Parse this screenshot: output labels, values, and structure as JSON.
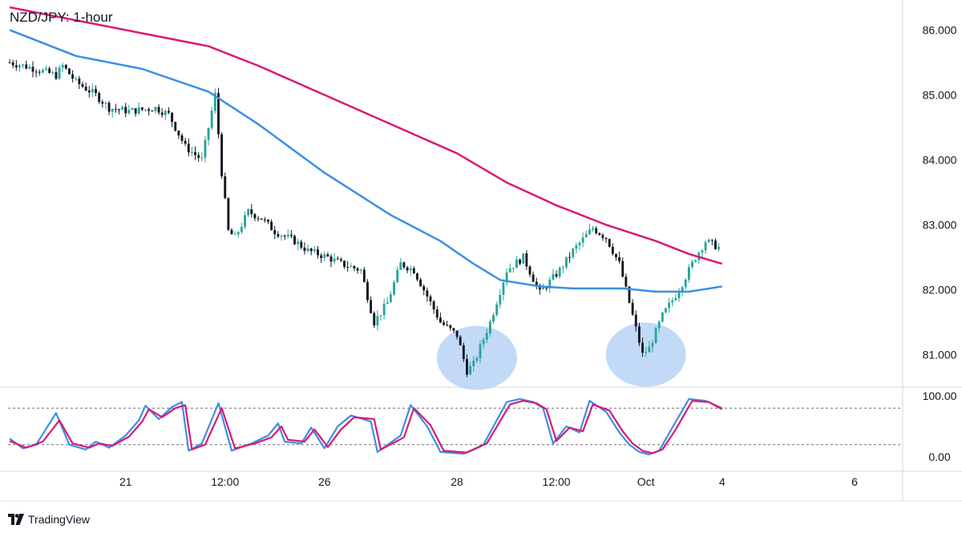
{
  "title": "NZD/JPY: 1-hour",
  "brand": {
    "name": "TradingView",
    "logo_icon": "tradingview-logo-icon"
  },
  "colors": {
    "up_candle": "#26a69a",
    "down_candle": "#131722",
    "ma_long": "#d81b72",
    "ma_short": "#3d8ee6",
    "stoch_k": "#3d8ee6",
    "stoch_d": "#d81b72",
    "highlight": "#b7d4f7",
    "grid": "#e0e3eb",
    "axis_text": "#131722"
  },
  "chart_data": [
    {
      "type": "candlestick",
      "title": "NZD/JPY: 1-hour",
      "ylim": [
        80.5,
        86.4
      ],
      "y_ticks": [
        "86.000",
        "85.000",
        "84.000",
        "83.000",
        "82.000",
        "81.000"
      ],
      "y_tick_values": [
        86,
        85,
        84,
        83,
        82,
        81
      ],
      "x_ticks": [
        "21",
        "12:00",
        "26",
        "28",
        "12:00",
        "Oct",
        "4",
        "6"
      ],
      "x_tick_index": [
        35,
        65,
        95,
        135,
        165,
        192,
        215,
        255
      ],
      "bar_count": 270,
      "price_path": [
        [
          0,
          85.5
        ],
        [
          8,
          85.4
        ],
        [
          14,
          85.3
        ],
        [
          16,
          85.45
        ],
        [
          20,
          85.2
        ],
        [
          26,
          85.0
        ],
        [
          30,
          84.8
        ],
        [
          36,
          84.75
        ],
        [
          44,
          84.8
        ],
        [
          48,
          84.7
        ],
        [
          53,
          84.2
        ],
        [
          58,
          84.0
        ],
        [
          62,
          85.0
        ],
        [
          64,
          83.8
        ],
        [
          66,
          82.9
        ],
        [
          68,
          82.8
        ],
        [
          72,
          83.2
        ],
        [
          76,
          83.1
        ],
        [
          80,
          82.9
        ],
        [
          86,
          82.75
        ],
        [
          90,
          82.6
        ],
        [
          96,
          82.5
        ],
        [
          100,
          82.4
        ],
        [
          106,
          82.3
        ],
        [
          110,
          81.5
        ],
        [
          114,
          81.8
        ],
        [
          118,
          82.4
        ],
        [
          122,
          82.3
        ],
        [
          126,
          81.9
        ],
        [
          130,
          81.5
        ],
        [
          135,
          81.3
        ],
        [
          138,
          80.75
        ],
        [
          140,
          80.85
        ],
        [
          145,
          81.5
        ],
        [
          150,
          82.3
        ],
        [
          155,
          82.5
        ],
        [
          160,
          81.95
        ],
        [
          166,
          82.3
        ],
        [
          170,
          82.6
        ],
        [
          176,
          82.95
        ],
        [
          180,
          82.8
        ],
        [
          184,
          82.4
        ],
        [
          188,
          81.6
        ],
        [
          191,
          81.0
        ],
        [
          193,
          81.1
        ],
        [
          197,
          81.6
        ],
        [
          202,
          82.0
        ],
        [
          207,
          82.5
        ],
        [
          210,
          82.75
        ],
        [
          214,
          82.65
        ]
      ],
      "series": [
        {
          "name": "",
          "kind": "moving-average",
          "points": [
            [
              0,
              86.35
            ],
            [
              20,
              86.15
            ],
            [
              40,
              85.95
            ],
            [
              60,
              85.75
            ],
            [
              75,
              85.45
            ],
            [
              95,
              85.0
            ],
            [
              115,
              84.55
            ],
            [
              135,
              84.1
            ],
            [
              150,
              83.65
            ],
            [
              165,
              83.3
            ],
            [
              180,
              83.0
            ],
            [
              195,
              82.75
            ],
            [
              205,
              82.55
            ],
            [
              215,
              82.4
            ]
          ]
        },
        {
          "name": "",
          "kind": "moving-average",
          "points": [
            [
              0,
              86.0
            ],
            [
              20,
              85.6
            ],
            [
              40,
              85.4
            ],
            [
              60,
              85.05
            ],
            [
              75,
              84.55
            ],
            [
              95,
              83.8
            ],
            [
              115,
              83.15
            ],
            [
              130,
              82.75
            ],
            [
              140,
              82.4
            ],
            [
              148,
              82.15
            ],
            [
              160,
              82.05
            ],
            [
              170,
              82.02
            ],
            [
              185,
              82.02
            ],
            [
              195,
              81.97
            ],
            [
              205,
              81.97
            ],
            [
              215,
              82.05
            ]
          ]
        }
      ],
      "annotations": [
        {
          "kind": "highlight-ellipse",
          "center": [
            141,
            80.95
          ]
        },
        {
          "kind": "highlight-ellipse",
          "center": [
            192,
            81.0
          ]
        }
      ]
    },
    {
      "type": "line",
      "ylim": [
        0,
        100
      ],
      "y_ticks": [
        "100.00",
        "0.00"
      ],
      "y_tick_values": [
        100,
        0
      ],
      "reference_lines": [
        80,
        20
      ],
      "series": [
        {
          "name": "",
          "kind": "stochastic-k",
          "points": [
            [
              0,
              30
            ],
            [
              4,
              14
            ],
            [
              8,
              20
            ],
            [
              14,
              72
            ],
            [
              18,
              20
            ],
            [
              23,
              12
            ],
            [
              26,
              25
            ],
            [
              30,
              15
            ],
            [
              35,
              35
            ],
            [
              39,
              60
            ],
            [
              41,
              84
            ],
            [
              45,
              62
            ],
            [
              49,
              82
            ],
            [
              52,
              90
            ],
            [
              54,
              10
            ],
            [
              58,
              22
            ],
            [
              63,
              88
            ],
            [
              67,
              10
            ],
            [
              73,
              22
            ],
            [
              78,
              35
            ],
            [
              81,
              55
            ],
            [
              83,
              25
            ],
            [
              88,
              22
            ],
            [
              91,
              48
            ],
            [
              95,
              14
            ],
            [
              99,
              50
            ],
            [
              103,
              68
            ],
            [
              109,
              58
            ],
            [
              111,
              8
            ],
            [
              118,
              35
            ],
            [
              121,
              85
            ],
            [
              126,
              50
            ],
            [
              130,
              8
            ],
            [
              137,
              5
            ],
            [
              143,
              20
            ],
            [
              150,
              90
            ],
            [
              154,
              95
            ],
            [
              158,
              90
            ],
            [
              161,
              80
            ],
            [
              164,
              22
            ],
            [
              168,
              50
            ],
            [
              172,
              40
            ],
            [
              175,
              92
            ],
            [
              180,
              74
            ],
            [
              184,
              40
            ],
            [
              187,
              20
            ],
            [
              190,
              8
            ],
            [
              193,
              4
            ],
            [
              196,
              10
            ],
            [
              200,
              48
            ],
            [
              205,
              95
            ],
            [
              210,
              92
            ],
            [
              215,
              80
            ]
          ]
        },
        {
          "name": "",
          "kind": "stochastic-d",
          "points": [
            [
              0,
              26
            ],
            [
              5,
              15
            ],
            [
              10,
              25
            ],
            [
              15,
              60
            ],
            [
              19,
              22
            ],
            [
              24,
              15
            ],
            [
              27,
              22
            ],
            [
              31,
              18
            ],
            [
              36,
              33
            ],
            [
              40,
              58
            ],
            [
              42,
              78
            ],
            [
              46,
              65
            ],
            [
              50,
              80
            ],
            [
              53,
              85
            ],
            [
              55,
              12
            ],
            [
              59,
              20
            ],
            [
              64,
              80
            ],
            [
              68,
              14
            ],
            [
              74,
              22
            ],
            [
              79,
              32
            ],
            [
              82,
              50
            ],
            [
              84,
              28
            ],
            [
              89,
              25
            ],
            [
              92,
              45
            ],
            [
              96,
              16
            ],
            [
              100,
              45
            ],
            [
              104,
              65
            ],
            [
              110,
              62
            ],
            [
              112,
              12
            ],
            [
              119,
              32
            ],
            [
              122,
              80
            ],
            [
              127,
              52
            ],
            [
              131,
              10
            ],
            [
              138,
              7
            ],
            [
              144,
              22
            ],
            [
              151,
              86
            ],
            [
              155,
              92
            ],
            [
              159,
              88
            ],
            [
              162,
              78
            ],
            [
              165,
              26
            ],
            [
              169,
              48
            ],
            [
              173,
              42
            ],
            [
              176,
              86
            ],
            [
              181,
              76
            ],
            [
              185,
              42
            ],
            [
              188,
              22
            ],
            [
              191,
              10
            ],
            [
              194,
              6
            ],
            [
              197,
              12
            ],
            [
              201,
              45
            ],
            [
              206,
              92
            ],
            [
              211,
              90
            ],
            [
              215,
              78
            ]
          ]
        }
      ]
    }
  ]
}
